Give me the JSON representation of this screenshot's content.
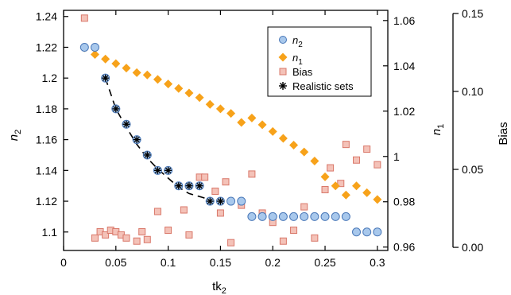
{
  "chart_data": {
    "type": "scatter",
    "xlabel": {
      "main": "tk",
      "sub": "2"
    },
    "ylabel_left": {
      "main": "n",
      "sub": "2"
    },
    "ylabel_right1": {
      "main": "n",
      "sub": "1"
    },
    "ylabel_right2": {
      "main": "Bias",
      "sub": ""
    },
    "xlim": [
      0,
      0.31
    ],
    "ylim_left": [
      1.088,
      1.244
    ],
    "ylim_right1": [
      0.9585,
      1.0645
    ],
    "ylim_right2": [
      -0.002,
      0.152
    ],
    "x_ticks": [
      "0",
      "0.05",
      "0.1",
      "0.15",
      "0.2",
      "0.25",
      "0.3"
    ],
    "left_ticks": [
      "1.1",
      "1.12",
      "1.14",
      "1.16",
      "1.18",
      "1.2",
      "1.22",
      "1.24"
    ],
    "right1_ticks": [
      "0.96",
      "0.98",
      "1",
      "1.02",
      "1.04",
      "1.06"
    ],
    "right2_ticks": [
      "0.00",
      "0.05",
      "0.10",
      "0.15"
    ],
    "grid": false,
    "legend_position": "top-right",
    "series": [
      {
        "name": "n2",
        "label_main": "n",
        "label_sub": "2",
        "axis": "left",
        "marker": "circle",
        "color": "#a8c8ec",
        "edge": "#4a78b8",
        "points": [
          [
            0.02,
            1.22
          ],
          [
            0.03,
            1.22
          ],
          [
            0.04,
            1.2
          ],
          [
            0.05,
            1.18
          ],
          [
            0.06,
            1.17
          ],
          [
            0.07,
            1.16
          ],
          [
            0.08,
            1.15
          ],
          [
            0.09,
            1.14
          ],
          [
            0.1,
            1.14
          ],
          [
            0.11,
            1.13
          ],
          [
            0.12,
            1.13
          ],
          [
            0.13,
            1.13
          ],
          [
            0.14,
            1.12
          ],
          [
            0.15,
            1.12
          ],
          [
            0.16,
            1.12
          ],
          [
            0.17,
            1.12
          ],
          [
            0.18,
            1.11
          ],
          [
            0.19,
            1.11
          ],
          [
            0.2,
            1.11
          ],
          [
            0.21,
            1.11
          ],
          [
            0.22,
            1.11
          ],
          [
            0.23,
            1.11
          ],
          [
            0.24,
            1.11
          ],
          [
            0.25,
            1.11
          ],
          [
            0.26,
            1.11
          ],
          [
            0.27,
            1.11
          ],
          [
            0.28,
            1.1
          ],
          [
            0.29,
            1.1
          ],
          [
            0.3,
            1.1
          ]
        ]
      },
      {
        "name": "n1",
        "label_main": "n",
        "label_sub": "1",
        "axis": "right1",
        "marker": "diamond",
        "color": "#f7a21a",
        "points": [
          [
            0.02,
            1.048
          ],
          [
            0.03,
            1.045
          ],
          [
            0.04,
            1.043
          ],
          [
            0.05,
            1.041
          ],
          [
            0.06,
            1.039
          ],
          [
            0.07,
            1.037
          ],
          [
            0.08,
            1.036
          ],
          [
            0.09,
            1.034
          ],
          [
            0.1,
            1.032
          ],
          [
            0.11,
            1.03
          ],
          [
            0.12,
            1.028
          ],
          [
            0.13,
            1.026
          ],
          [
            0.14,
            1.023
          ],
          [
            0.15,
            1.021
          ],
          [
            0.16,
            1.019
          ],
          [
            0.17,
            1.015
          ],
          [
            0.18,
            1.017
          ],
          [
            0.19,
            1.014
          ],
          [
            0.2,
            1.011
          ],
          [
            0.21,
            1.008
          ],
          [
            0.22,
            1.005
          ],
          [
            0.23,
            1.002
          ],
          [
            0.24,
            0.998
          ],
          [
            0.25,
            0.991
          ],
          [
            0.26,
            0.987
          ],
          [
            0.27,
            0.983
          ],
          [
            0.28,
            0.987
          ],
          [
            0.29,
            0.984
          ],
          [
            0.3,
            0.981
          ]
        ]
      },
      {
        "name": "Bias",
        "label_main": "Bias",
        "label_sub": "",
        "axis": "right2",
        "marker": "square",
        "color": "#f4c2b8",
        "edge": "#d9786a",
        "points": [
          [
            0.02,
            0.147
          ],
          [
            0.03,
            0.006
          ],
          [
            0.035,
            0.01
          ],
          [
            0.04,
            0.008
          ],
          [
            0.045,
            0.011
          ],
          [
            0.05,
            0.01
          ],
          [
            0.055,
            0.008
          ],
          [
            0.06,
            0.006
          ],
          [
            0.07,
            0.004
          ],
          [
            0.075,
            0.01
          ],
          [
            0.08,
            0.005
          ],
          [
            0.09,
            0.023
          ],
          [
            0.1,
            0.011
          ],
          [
            0.115,
            0.024
          ],
          [
            0.12,
            0.008
          ],
          [
            0.13,
            0.045
          ],
          [
            0.135,
            0.045
          ],
          [
            0.145,
            0.036
          ],
          [
            0.15,
            0.022
          ],
          [
            0.155,
            0.042
          ],
          [
            0.16,
            0.003
          ],
          [
            0.17,
            0.027
          ],
          [
            0.18,
            0.047
          ],
          [
            0.19,
            0.022
          ],
          [
            0.2,
            0.016
          ],
          [
            0.21,
            0.004
          ],
          [
            0.22,
            0.011
          ],
          [
            0.23,
            0.026
          ],
          [
            0.24,
            0.006
          ],
          [
            0.25,
            0.037
          ],
          [
            0.255,
            0.051
          ],
          [
            0.265,
            0.041
          ],
          [
            0.27,
            0.066
          ],
          [
            0.28,
            0.056
          ],
          [
            0.29,
            0.063
          ],
          [
            0.3,
            0.053
          ]
        ]
      }
    ],
    "realistic_sets": {
      "name": "Realistic sets",
      "axis": "left",
      "marker": "asterisk",
      "points": [
        [
          0.04,
          1.2
        ],
        [
          0.05,
          1.18
        ],
        [
          0.06,
          1.17
        ],
        [
          0.07,
          1.16
        ],
        [
          0.08,
          1.15
        ],
        [
          0.09,
          1.14
        ],
        [
          0.1,
          1.14
        ],
        [
          0.11,
          1.13
        ],
        [
          0.12,
          1.13
        ],
        [
          0.13,
          1.13
        ],
        [
          0.14,
          1.12
        ],
        [
          0.15,
          1.12
        ]
      ]
    },
    "fit_curve": {
      "style": "dashed",
      "color": "#000000",
      "points": [
        [
          0.04,
          1.2
        ],
        [
          0.05,
          1.18
        ],
        [
          0.06,
          1.168
        ],
        [
          0.07,
          1.157
        ],
        [
          0.08,
          1.148
        ],
        [
          0.09,
          1.141
        ],
        [
          0.1,
          1.135
        ],
        [
          0.11,
          1.129
        ],
        [
          0.12,
          1.125
        ],
        [
          0.13,
          1.123
        ],
        [
          0.14,
          1.121
        ]
      ]
    }
  }
}
